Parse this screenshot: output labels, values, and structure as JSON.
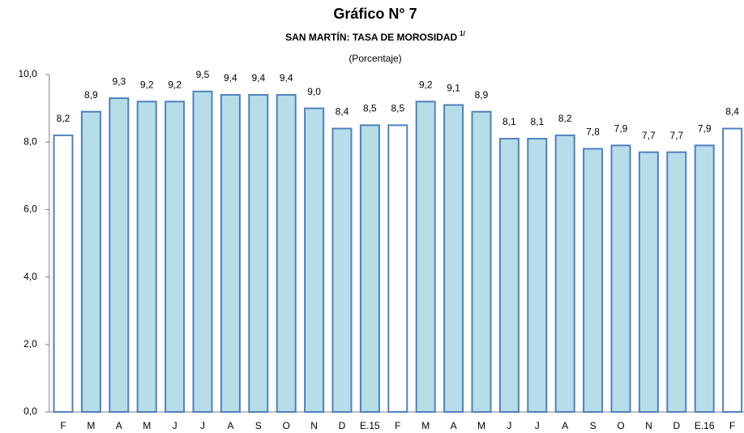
{
  "chart_data": {
    "type": "bar",
    "title": "Gráfico N° 7",
    "subtitle": "SAN MARTÍN: TASA DE MOROSIDAD",
    "subtitle_note": "1/",
    "unit_label": "(Porcentaje)",
    "categories": [
      "F",
      "M",
      "A",
      "M",
      "J",
      "J",
      "A",
      "S",
      "O",
      "N",
      "D",
      "E.15",
      "F",
      "M",
      "A",
      "M",
      "J",
      "J",
      "A",
      "S",
      "O",
      "N",
      "D",
      "E.16",
      "F"
    ],
    "values": [
      8.2,
      8.9,
      9.3,
      9.2,
      9.2,
      9.5,
      9.4,
      9.4,
      9.4,
      9.0,
      8.4,
      8.5,
      8.5,
      9.2,
      9.1,
      8.9,
      8.1,
      8.1,
      8.2,
      7.8,
      7.9,
      7.7,
      7.7,
      7.9,
      8.4
    ],
    "value_labels": [
      "8,2",
      "8,9",
      "9,3",
      "9,2",
      "9,2",
      "9,5",
      "9,4",
      "9,4",
      "9,4",
      "9,0",
      "8,4",
      "8,5",
      "8,5",
      "9,2",
      "9,1",
      "8,9",
      "8,1",
      "8,1",
      "8,2",
      "7,8",
      "7,9",
      "7,7",
      "7,7",
      "7,9",
      "8,4"
    ],
    "colors": [
      "#ffffff",
      "#b7dde8",
      "#b7dde8",
      "#b7dde8",
      "#b7dde8",
      "#b7dde8",
      "#b7dde8",
      "#b7dde8",
      "#b7dde8",
      "#b7dde8",
      "#b7dde8",
      "#b7dde8",
      "#ffffff",
      "#b7dde8",
      "#b7dde8",
      "#b7dde8",
      "#b7dde8",
      "#b7dde8",
      "#b7dde8",
      "#b7dde8",
      "#b7dde8",
      "#b7dde8",
      "#b7dde8",
      "#b7dde8",
      "#ffffff"
    ],
    "edge_color": "#4f81bd",
    "ylim": [
      0,
      10
    ],
    "yticks": [
      {
        "value": 0,
        "label": "0,0"
      },
      {
        "value": 2,
        "label": "2,0"
      },
      {
        "value": 4,
        "label": "4,0"
      },
      {
        "value": 6,
        "label": "6,0"
      },
      {
        "value": 8,
        "label": "8,0"
      },
      {
        "value": 10,
        "label": "10,0"
      }
    ],
    "grid": false
  }
}
